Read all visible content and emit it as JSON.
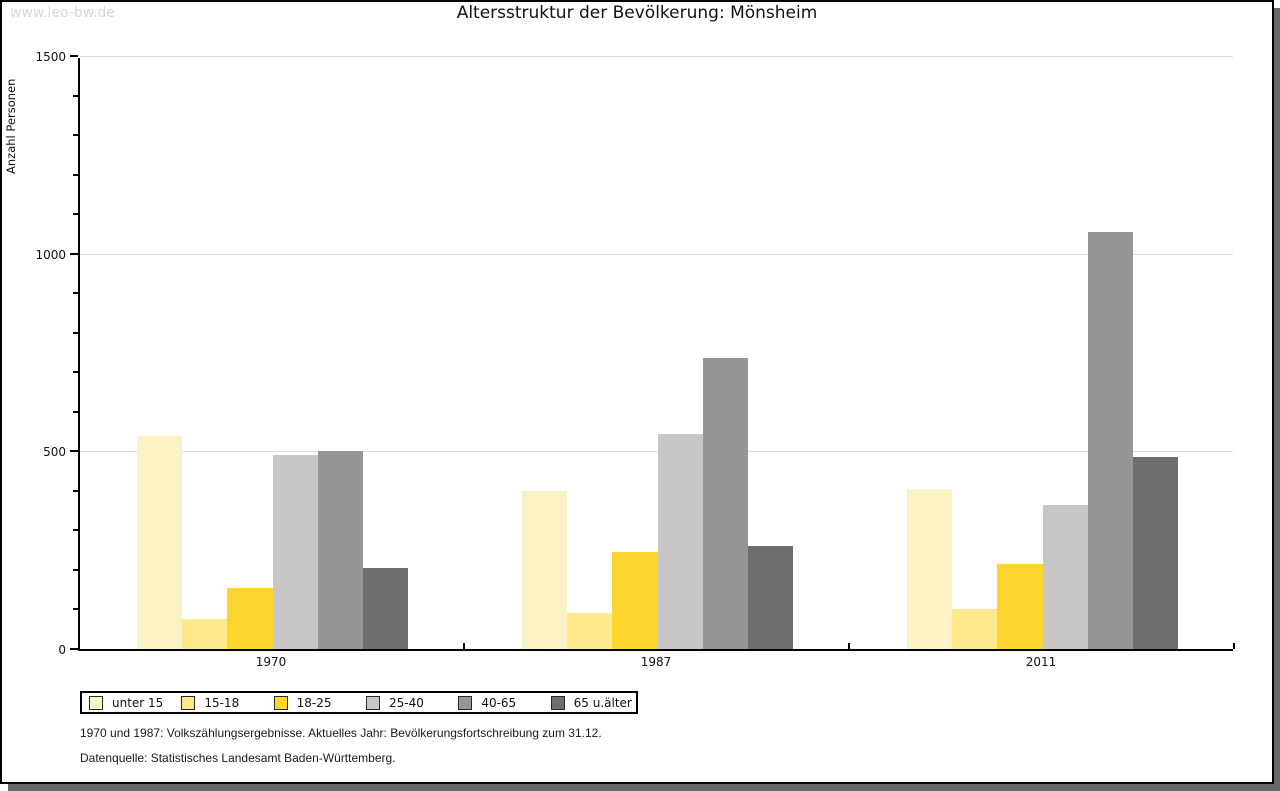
{
  "watermark": "www.leo-bw.de",
  "chart_data": {
    "type": "bar",
    "title": "Altersstruktur der Bevölkerung: Mönsheim",
    "xlabel": "",
    "ylabel": "Anzahl Personen",
    "ylim": [
      0,
      1500
    ],
    "yticks": [
      0,
      500,
      1000,
      1500
    ],
    "y_minor_step": 100,
    "grid": "horizontal",
    "legend_position": "bottom-left",
    "categories": [
      "1970",
      "1987",
      "2011"
    ],
    "series": [
      {
        "name": "unter 15",
        "color": "#FBF3C5",
        "values": [
          540,
          400,
          405
        ]
      },
      {
        "name": "15-18",
        "color": "#FBE98C",
        "values": [
          75,
          90,
          100
        ]
      },
      {
        "name": "18-25",
        "color": "#FCD62F",
        "values": [
          155,
          245,
          215
        ]
      },
      {
        "name": "25-40",
        "color": "#C7C7C7",
        "values": [
          490,
          545,
          365
        ]
      },
      {
        "name": "40-65",
        "color": "#969696",
        "values": [
          500,
          735,
          1055
        ]
      },
      {
        "name": "65 u.älter",
        "color": "#6E6E6E",
        "values": [
          205,
          260,
          485
        ]
      }
    ]
  },
  "footnotes": {
    "line1": "1970 und 1987: Volkszählungsergebnisse. Aktuelles Jahr: Bevölkerungsfortschreibung zum 31.12.",
    "line2": "Datenquelle: Statistisches Landesamt Baden-Württemberg."
  },
  "colors": {
    "axis": "#000000",
    "grid": "#DCDCDC",
    "page_shadow": "#666666",
    "watermark_text": "#D6D6D6"
  }
}
